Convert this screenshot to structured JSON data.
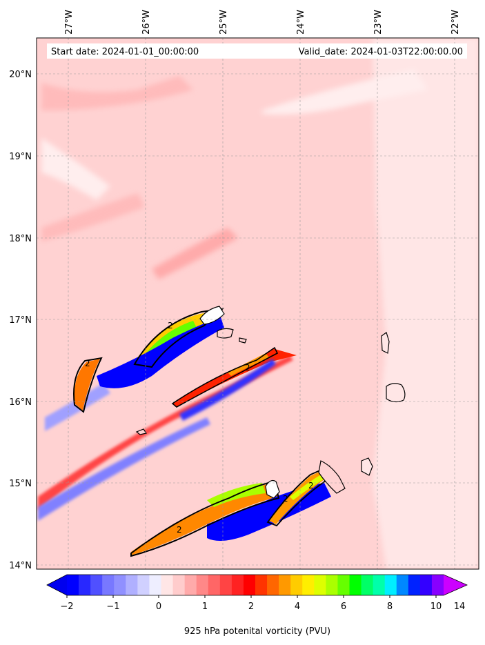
{
  "header": {
    "start_date": "Start date: 2024-01-01_00:00:00",
    "valid_date": "Valid_date: 2024-01-03T22:00:00.00"
  },
  "lon_ticks": [
    "27°W",
    "26°W",
    "25°W",
    "24°W",
    "23°W",
    "22°W"
  ],
  "lat_ticks": [
    "20°N",
    "19°N",
    "18°N",
    "17°N",
    "16°N",
    "15°N",
    "14°N"
  ],
  "contour_label": "2",
  "colorbar": {
    "label": "925 hPa potenital vorticity (PVU)",
    "tick_labels": [
      "−2",
      "−1",
      "0",
      "1",
      "2",
      "4",
      "6",
      "8",
      "10",
      "14"
    ],
    "colors": [
      "#0000ff",
      "#2828ff",
      "#5050ff",
      "#7878ff",
      "#9090ff",
      "#b0b0ff",
      "#d0d0ff",
      "#eeeeff",
      "#ffe6e6",
      "#ffcccc",
      "#ffaaaa",
      "#ff8888",
      "#ff6666",
      "#ff4444",
      "#ff2222",
      "#ff0000",
      "#ff3300",
      "#ff6600",
      "#ff9900",
      "#ffcc00",
      "#ffee00",
      "#ddff00",
      "#aaff00",
      "#66ff00",
      "#00ff00",
      "#00ff66",
      "#00ffaa",
      "#00eeff",
      "#0088ff",
      "#0022ff",
      "#3300ff",
      "#8800ff"
    ],
    "end_low": "#0000ee",
    "end_high": "#cc00ff"
  }
}
